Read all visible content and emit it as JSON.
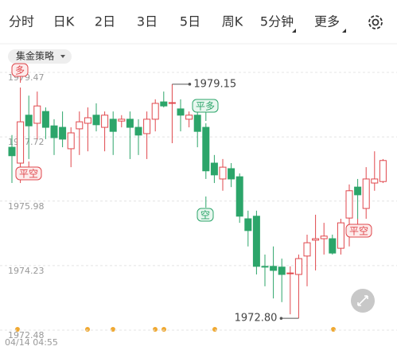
{
  "tabs": [
    "分时",
    "日K",
    "2日",
    "3日",
    "5日",
    "周K",
    "5分钟",
    "更多"
  ],
  "strategy": "集金策略",
  "chart_data": {
    "type": "candlestick",
    "ylim": [
      1972.48,
      1979.47
    ],
    "yticks": [
      1979.47,
      1977.72,
      1975.98,
      1974.23,
      1972.48
    ],
    "grid": true,
    "up_color": "#e0474c",
    "down_color": "#2ca56a",
    "x_label": "04/14 04:55",
    "high_label": "1979.15",
    "low_label": "1972.80",
    "signals": [
      "多",
      "平空",
      "平多",
      "空",
      "平空"
    ],
    "open": [
      1977.44,
      1977.01,
      1978.31,
      1978.09,
      1978.41,
      1978.02,
      1977.98,
      1977.4,
      1977.94,
      1978.09,
      1978.31,
      1977.98,
      1978.2,
      1978.15,
      1978.2,
      1977.98,
      1977.81,
      1978.2,
      1978.67,
      1978.63,
      1978.48,
      1978.2,
      1978.31,
      1977.98,
      1977.01,
      1976.58,
      1976.86,
      1976.64,
      1975.5,
      1975.57,
      1974.21,
      1974.21,
      1974.19,
      1974.01,
      1973.99,
      1974.49,
      1974.92,
      1974.96,
      1974.96,
      1974.7,
      1975.52,
      1976.36,
      1975.78,
      1976.47,
      1976.51
    ],
    "close": [
      1977.21,
      1978.13,
      1978.02,
      1978.56,
      1977.98,
      1977.7,
      1977.66,
      1977.83,
      1978.13,
      1978.24,
      1978.05,
      1978.31,
      1977.87,
      1978.2,
      1977.98,
      1977.77,
      1978.2,
      1978.63,
      1978.56,
      1978.65,
      1978.31,
      1978.31,
      1977.87,
      1976.8,
      1976.69,
      1976.9,
      1976.58,
      1975.57,
      1975.18,
      1974.21,
      1974.19,
      1974.1,
      1973.99,
      1974.03,
      1974.42,
      1974.85,
      1974.96,
      1975.03,
      1974.57,
      1975.39,
      1976.26,
      1976.15,
      1976.58,
      1976.58,
      1977.08
    ],
    "high": [
      1977.77,
      1979.06,
      1978.84,
      1978.95,
      1978.52,
      1978.2,
      1978.41,
      1977.98,
      1978.41,
      1978.52,
      1978.63,
      1978.41,
      1978.41,
      1978.31,
      1978.41,
      1978.2,
      1978.41,
      1978.74,
      1978.95,
      1979.15,
      1978.74,
      1978.41,
      1978.41,
      1978.09,
      1977.23,
      1977.12,
      1977.01,
      1976.73,
      1975.72,
      1975.72,
      1974.53,
      1974.75,
      1974.42,
      1974.21,
      1974.53,
      1975.07,
      1975.61,
      1975.39,
      1975.07,
      1975.5,
      1976.43,
      1976.58,
      1976.9,
      1977.33,
      1977.12
    ],
    "low": [
      1976.47,
      1976.47,
      1977.12,
      1977.66,
      1977.66,
      1977.23,
      1977.44,
      1976.9,
      1977.23,
      1977.33,
      1977.87,
      1977.33,
      1977.23,
      1977.98,
      1977.12,
      1977.23,
      1977.12,
      1977.87,
      1978.52,
      1977.55,
      1977.87,
      1977.98,
      1977.44,
      1976.58,
      1976.47,
      1976.26,
      1976.36,
      1975.39,
      1974.75,
      1973.99,
      1973.67,
      1973.34,
      1973.24,
      1972.91,
      1972.8,
      1973.67,
      1974.1,
      1974.53,
      1974.53,
      1974.53,
      1974.75,
      1975.5,
      1975.5,
      1976.26,
      1976.47
    ]
  }
}
